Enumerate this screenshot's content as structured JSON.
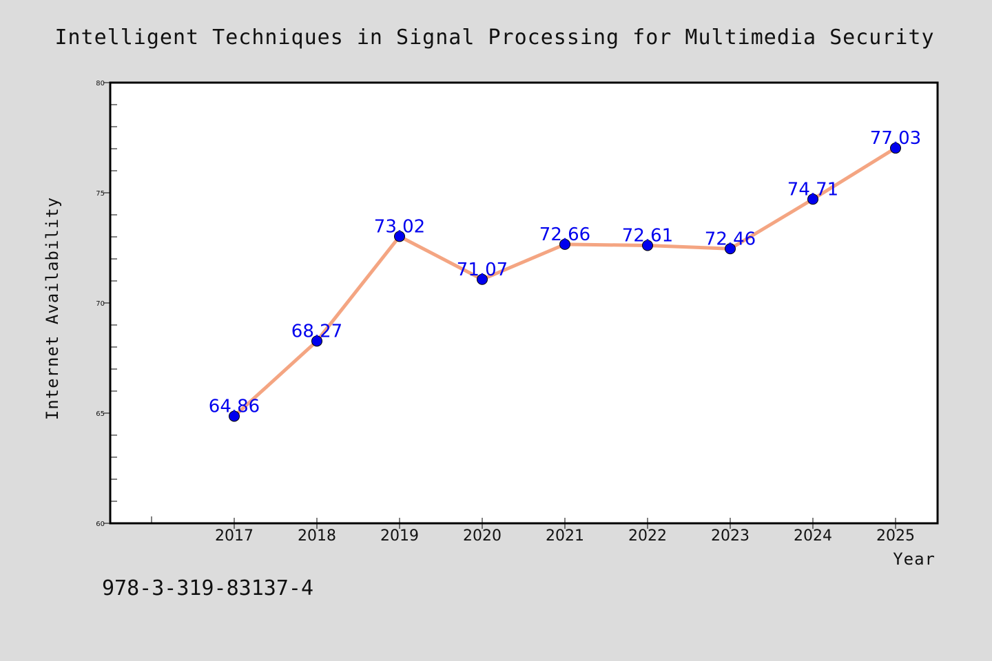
{
  "chart_data": {
    "type": "line",
    "title": "Intelligent Techniques in Signal Processing for Multimedia Security",
    "xlabel": "Year",
    "ylabel": "Internet Availability",
    "categories": [
      "2017",
      "2018",
      "2019",
      "2020",
      "2021",
      "2022",
      "2023",
      "2024",
      "2025"
    ],
    "values": [
      64.86,
      68.27,
      73.02,
      71.07,
      72.66,
      72.61,
      72.46,
      74.71,
      77.03
    ],
    "data_labels": [
      "64.86",
      "68.27",
      "73.02",
      "71.07",
      "72.66",
      "72.61",
      "72.46",
      "74.71",
      "77.03"
    ],
    "ylim": [
      60,
      80
    ],
    "yticks": [
      "60",
      "65",
      "70",
      "75",
      "80"
    ],
    "grid": false,
    "legend": "none",
    "line_color": "#f4a582",
    "marker_color": "#0000ee",
    "label_color": "#0000ee"
  },
  "footer": {
    "text": "978-3-319-83137-4"
  },
  "colors": {
    "background": "#dcdcdc",
    "plot_background": "#ffffff"
  }
}
